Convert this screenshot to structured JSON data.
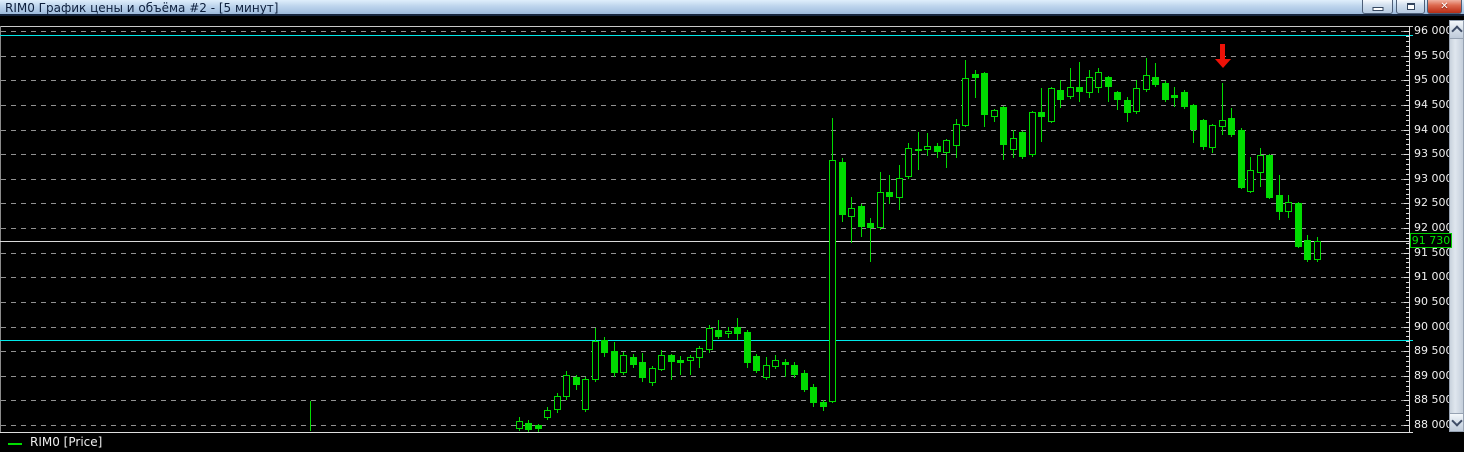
{
  "window": {
    "title": "RIM0 График цены и объёма #2 - [5 минут]",
    "controls": {
      "minimize": "minimize",
      "restore": "restore",
      "close_glyph": "✕"
    }
  },
  "legend": {
    "series_label": "RIM0 [Price]",
    "series_color": "#00dc00"
  },
  "colors": {
    "background": "#000000",
    "candle": "#00dc00",
    "grid": "#919191",
    "level_line": "#00e8e8",
    "last_price_line": "#d8d8d8",
    "arrow": "#ee1208",
    "badge_green": "#00e400"
  },
  "chart_data": {
    "type": "candlestick",
    "symbol": "RIM0",
    "interval": "5 минут",
    "title": "RIM0 График цены и объёма #2 - [5 минут]",
    "legend": "RIM0 [Price]",
    "y_axis": {
      "min": 88000,
      "max": 96000,
      "major_step": 500,
      "minor_step": 100,
      "tick_labels": [
        "96 000",
        "95 500",
        "95 000",
        "94 500",
        "94 000",
        "93 500",
        "93 000",
        "92 500",
        "92 000",
        "91 500",
        "91 000",
        "90 500",
        "90 000",
        "89 500",
        "89 000",
        "88 500",
        "88 000"
      ]
    },
    "grid": true,
    "last_price": 91730,
    "last_price_label": "91 730",
    "levels": [
      95920,
      89730
    ],
    "pre_series_spike": {
      "high": 88490,
      "low": 87880
    },
    "annotation": {
      "type": "down-arrow",
      "candle_index": 74
    },
    "candles_format": [
      "open",
      "high",
      "low",
      "close"
    ],
    "candles": [
      [
        87920,
        88160,
        87880,
        88090
      ],
      [
        88040,
        88110,
        87870,
        87890
      ],
      [
        87990,
        88020,
        87860,
        87900
      ],
      [
        88150,
        88370,
        88100,
        88310
      ],
      [
        88300,
        88650,
        88250,
        88580
      ],
      [
        88570,
        89090,
        88510,
        89020
      ],
      [
        88980,
        89010,
        88710,
        88820
      ],
      [
        88300,
        88970,
        88260,
        88930
      ],
      [
        88910,
        89970,
        88880,
        89700
      ],
      [
        89730,
        89790,
        89380,
        89460
      ],
      [
        89500,
        89690,
        88980,
        89060
      ],
      [
        89060,
        89480,
        89010,
        89420
      ],
      [
        89380,
        89440,
        89160,
        89220
      ],
      [
        89280,
        89460,
        88880,
        88960
      ],
      [
        88850,
        89200,
        88800,
        89160
      ],
      [
        89120,
        89520,
        89100,
        89420
      ],
      [
        89420,
        89440,
        88910,
        89280
      ],
      [
        89320,
        89400,
        89020,
        89260
      ],
      [
        89290,
        89420,
        89010,
        89380
      ],
      [
        89360,
        89600,
        89160,
        89560
      ],
      [
        89520,
        90040,
        89480,
        89970
      ],
      [
        89930,
        90130,
        89750,
        89790
      ],
      [
        89850,
        89990,
        89770,
        89910
      ],
      [
        89990,
        90170,
        89730,
        89850
      ],
      [
        89890,
        89930,
        89160,
        89260
      ],
      [
        89400,
        89440,
        89060,
        89100
      ],
      [
        88960,
        89380,
        88920,
        89220
      ],
      [
        89180,
        89420,
        89140,
        89320
      ],
      [
        89280,
        89340,
        88980,
        89220
      ],
      [
        89220,
        89280,
        88960,
        89020
      ],
      [
        89060,
        89120,
        88670,
        88710
      ],
      [
        88770,
        88830,
        88370,
        88450
      ],
      [
        88470,
        88510,
        88290,
        88370
      ],
      [
        88470,
        94230,
        88450,
        93380
      ],
      [
        93340,
        93420,
        92120,
        92260
      ],
      [
        92220,
        92630,
        91700,
        92400
      ],
      [
        92450,
        92490,
        91820,
        92020
      ],
      [
        92100,
        92200,
        91300,
        92000
      ],
      [
        92000,
        93140,
        91970,
        92730
      ],
      [
        92730,
        93080,
        92500,
        92630
      ],
      [
        92610,
        93280,
        92370,
        93020
      ],
      [
        93040,
        93730,
        93000,
        93630
      ],
      [
        93610,
        93950,
        93180,
        93560
      ],
      [
        93580,
        93930,
        93460,
        93660
      ],
      [
        93660,
        93720,
        93420,
        93540
      ],
      [
        93520,
        93800,
        93220,
        93790
      ],
      [
        93660,
        94210,
        93420,
        94110
      ],
      [
        94070,
        95410,
        94050,
        95040
      ],
      [
        95120,
        95200,
        94640,
        95040
      ],
      [
        95140,
        95160,
        94050,
        94290
      ],
      [
        94250,
        94420,
        94150,
        94400
      ],
      [
        94460,
        94480,
        93380,
        93690
      ],
      [
        93590,
        93990,
        93420,
        93830
      ],
      [
        93950,
        93970,
        93400,
        93440
      ],
      [
        93480,
        94380,
        93440,
        94360
      ],
      [
        94360,
        94840,
        93750,
        94260
      ],
      [
        94150,
        94860,
        94130,
        94840
      ],
      [
        94800,
        95010,
        94440,
        94600
      ],
      [
        94660,
        95250,
        94620,
        94860
      ],
      [
        94860,
        95370,
        94560,
        94760
      ],
      [
        94740,
        95210,
        94640,
        95070
      ],
      [
        94840,
        95250,
        94740,
        95170
      ],
      [
        95070,
        95090,
        94560,
        94860
      ],
      [
        94760,
        94780,
        94400,
        94600
      ],
      [
        94600,
        94660,
        94150,
        94340
      ],
      [
        94360,
        95010,
        94320,
        94840
      ],
      [
        94800,
        95450,
        94760,
        95110
      ],
      [
        95070,
        95350,
        94860,
        94900
      ],
      [
        94940,
        94980,
        94560,
        94600
      ],
      [
        94700,
        94860,
        94460,
        94640
      ],
      [
        94760,
        94800,
        94420,
        94460
      ],
      [
        94500,
        94520,
        93730,
        93990
      ],
      [
        94190,
        94210,
        93580,
        93640
      ],
      [
        93620,
        94110,
        93520,
        94090
      ],
      [
        94050,
        94950,
        93890,
        94190
      ],
      [
        94230,
        94440,
        93850,
        93890
      ],
      [
        93990,
        94030,
        92790,
        92810
      ],
      [
        92730,
        93440,
        92710,
        93180
      ],
      [
        93120,
        93620,
        92830,
        93480
      ],
      [
        93480,
        93500,
        92590,
        92610
      ],
      [
        92670,
        93080,
        92160,
        92330
      ],
      [
        92330,
        92670,
        92200,
        92530
      ],
      [
        92510,
        92530,
        91600,
        91620
      ],
      [
        91760,
        91860,
        91310,
        91360
      ],
      [
        91350,
        91820,
        91310,
        91730
      ]
    ]
  }
}
